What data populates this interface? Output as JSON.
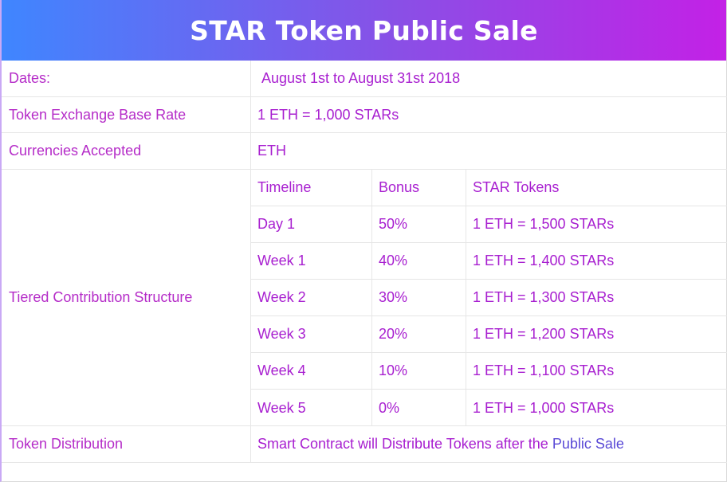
{
  "title": "STAR Token Public Sale",
  "rows": {
    "dates": {
      "label": "Dates:",
      "value": "August 1st to August 31st 2018"
    },
    "base_rate": {
      "label": "Token Exchange Base Rate",
      "value": "1 ETH = 1,000 STARs"
    },
    "currencies": {
      "label": "Currencies Accepted",
      "value": "ETH"
    },
    "tiered": {
      "label": "Tiered Contribution Structure"
    },
    "distribution": {
      "label": "Token Distribution",
      "value_part1": "Smart Contract will Distribute Tokens after the",
      "value_part2": "Public Sale"
    }
  },
  "tiers": {
    "headers": [
      "Timeline",
      "Bonus",
      "STAR Tokens"
    ],
    "items": [
      {
        "timeline": "Day 1",
        "bonus": "50%",
        "tokens": "1 ETH = 1,500 STARs"
      },
      {
        "timeline": "Week 1",
        "bonus": "40%",
        "tokens": "1 ETH = 1,400 STARs"
      },
      {
        "timeline": "Week 2",
        "bonus": "30%",
        "tokens": "1 ETH = 1,300 STARs"
      },
      {
        "timeline": "Week 3",
        "bonus": "20%",
        "tokens": "1 ETH = 1,200 STARs"
      },
      {
        "timeline": "Week 4",
        "bonus": "10%",
        "tokens": "1 ETH = 1,100 STARs"
      },
      {
        "timeline": "Week 5",
        "bonus": "0%",
        "tokens": "1 ETH = 1,000 STARs"
      }
    ]
  },
  "colors": {
    "banner_start": "#3f86ff",
    "banner_end": "#c321e6",
    "text_purple": "#a81fd0",
    "text_blue": "#5a4ad6"
  }
}
